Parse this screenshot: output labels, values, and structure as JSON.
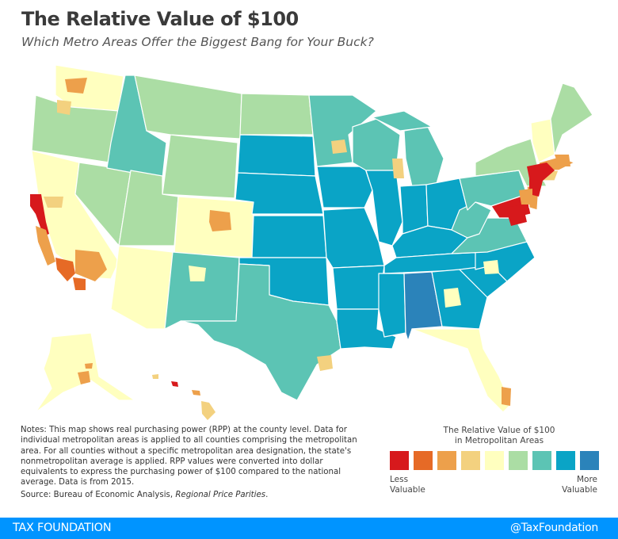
{
  "title": "The Relative Value of $100",
  "subtitle": "Which Metro Areas Offer the Biggest Bang for Your Buck?",
  "notes": "Notes: This map shows real purchasing power (RPP) at the county level. Data for individual metropolitan areas is applied to all counties comprising the metropolitan area. For all counties without a specific metropolitan area designation, the state's nonmetropolitan average is applied. RPP values were converted into dollar equivalents to express the purchasing power of $100 compared to the national average. Data is from 2015.",
  "source_prefix": "Source: Bureau of Economic Analysis, ",
  "source_title": "Regional Price Parities",
  "source_suffix": ".",
  "legend": {
    "title_line1": "The Relative Value of $100",
    "title_line2": "in Metropolitan Areas",
    "less_line1": "Less",
    "less_line2": "Valuable",
    "more_line1": "More",
    "more_line2": "Valuable",
    "colors": [
      "#d7191c",
      "#e66a26",
      "#eda04b",
      "#f3d17f",
      "#ffffbf",
      "#abdda4",
      "#5cc4b4",
      "#0aa4c6",
      "#2b83ba"
    ]
  },
  "footer": {
    "brand": "TAX FOUNDATION",
    "handle": "@TaxFoundation",
    "color": "#0094ff"
  }
}
